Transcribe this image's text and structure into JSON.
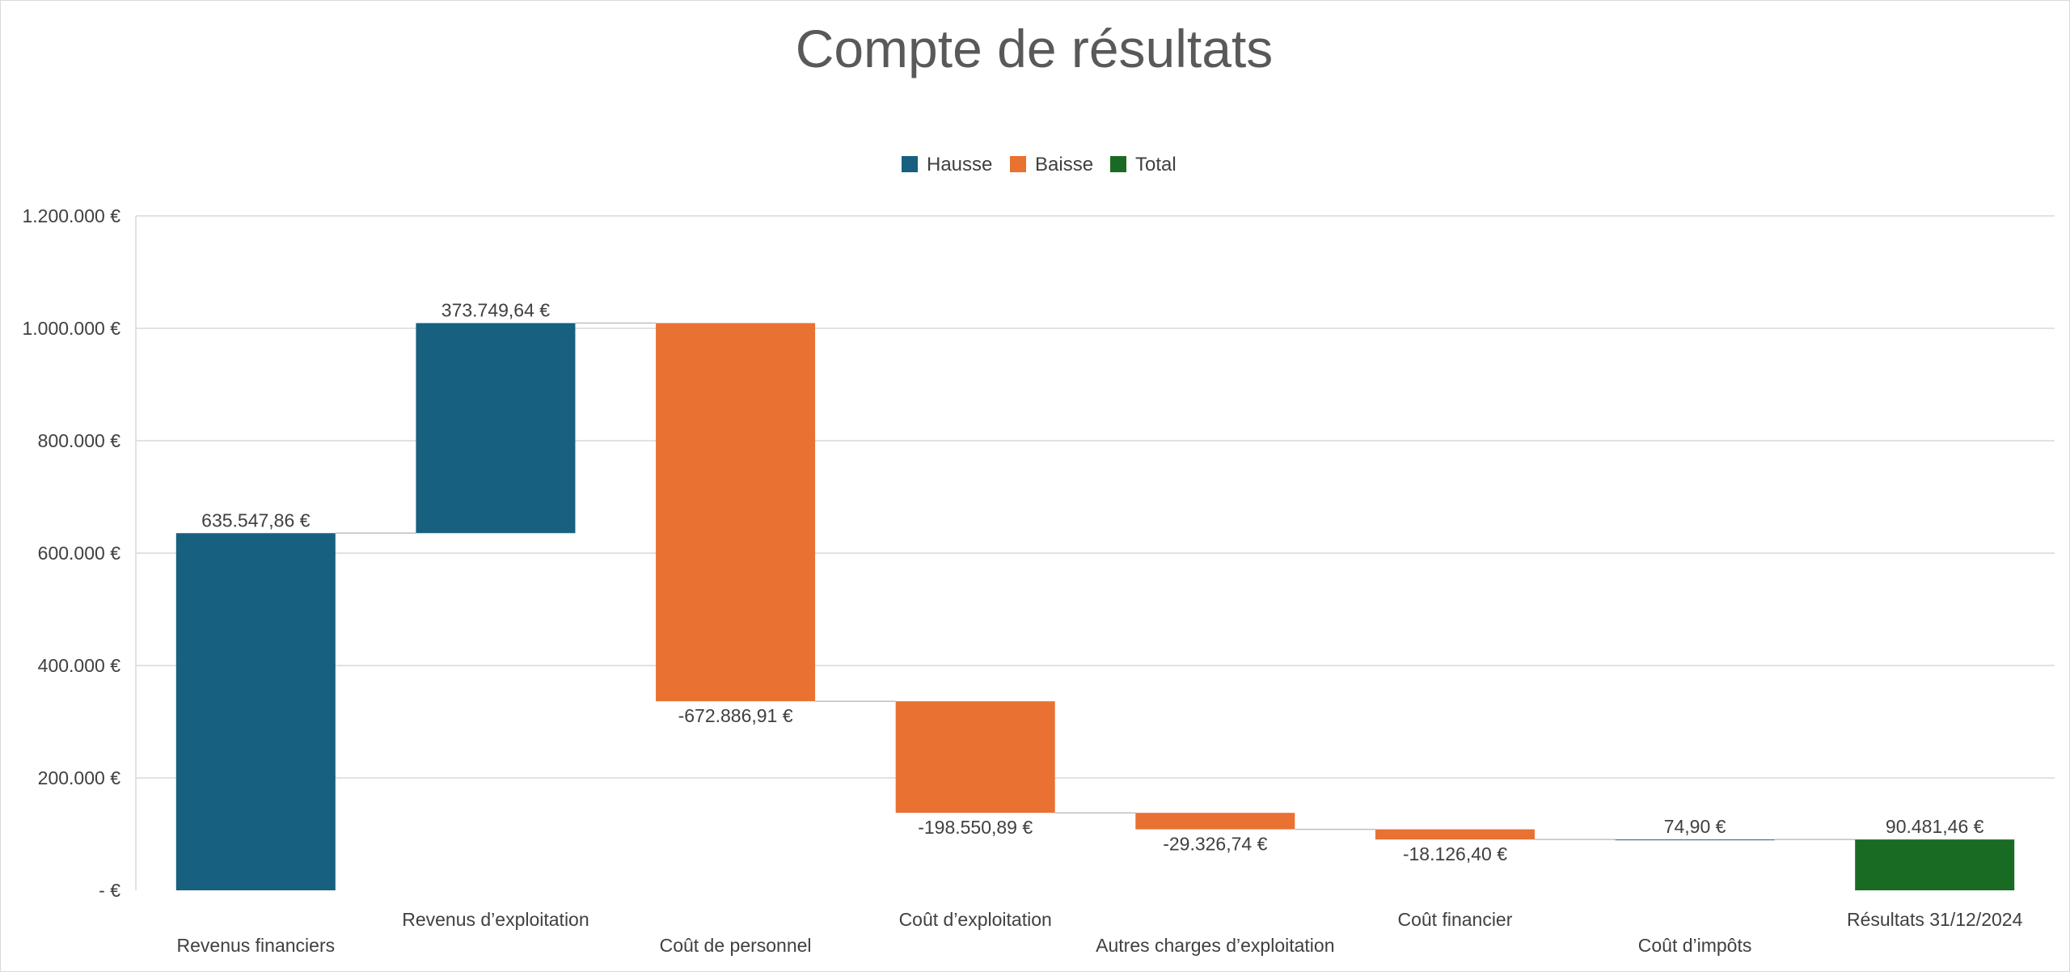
{
  "colors": {
    "increase": "#17607f",
    "decrease": "#e97132",
    "total": "#196b24"
  },
  "chart_data": {
    "type": "waterfall",
    "title": "Compte de résultats",
    "legend": {
      "position": "top",
      "items": [
        {
          "name": "Hausse",
          "role": "increase"
        },
        {
          "name": "Baisse",
          "role": "decrease"
        },
        {
          "name": "Total",
          "role": "total"
        }
      ]
    },
    "y_axis": {
      "min": 0,
      "max": 1200000,
      "major_unit": 200000,
      "tick_labels": [
        "- €",
        "200.000 €",
        "400.000 €",
        "600.000 €",
        "800.000 €",
        "1.000.000 €",
        "1.200.000 €"
      ]
    },
    "grid": true,
    "points": [
      {
        "category": "Revenus financiers",
        "value": 635547.86,
        "kind": "increase",
        "label": "635.547,86 €"
      },
      {
        "category": "Revenus d’exploitation",
        "value": 373749.64,
        "kind": "increase",
        "label": "373.749,64 €"
      },
      {
        "category": "Coût de personnel",
        "value": -672886.91,
        "kind": "decrease",
        "label": "-672.886,91 €"
      },
      {
        "category": "Coût d’exploitation",
        "value": -198550.89,
        "kind": "decrease",
        "label": "-198.550,89 €"
      },
      {
        "category": "Autres charges d’exploitation",
        "value": -29326.74,
        "kind": "decrease",
        "label": "-29.326,74 €"
      },
      {
        "category": "Coût financier",
        "value": -18126.4,
        "kind": "decrease",
        "label": "-18.126,40 €"
      },
      {
        "category": "Coût d’impôts",
        "value": 74.9,
        "kind": "increase",
        "label": "74,90 €"
      },
      {
        "category": "Résultats 31/12/2024",
        "value": 90481.46,
        "kind": "total",
        "label": "90.481,46 €"
      }
    ]
  }
}
